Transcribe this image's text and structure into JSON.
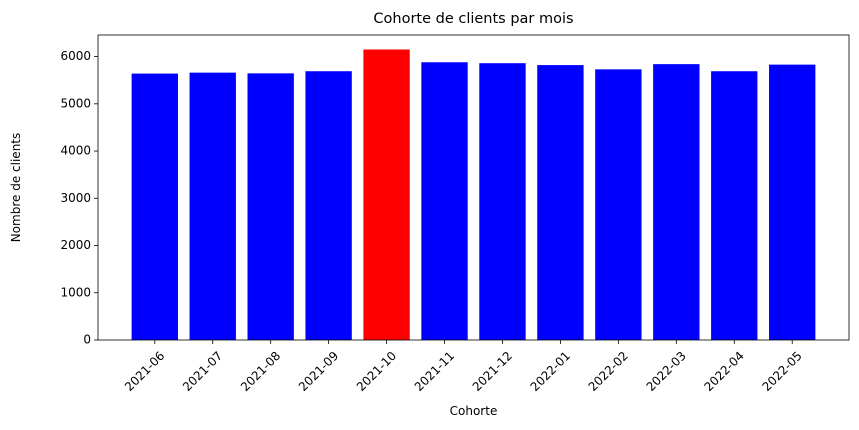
{
  "chart_data": {
    "type": "bar",
    "title": "Cohorte de clients par mois",
    "xlabel": "Cohorte",
    "ylabel": "Nombre de clients",
    "categories": [
      "2021-06",
      "2021-07",
      "2021-08",
      "2021-09",
      "2021-10",
      "2021-11",
      "2021-12",
      "2022-01",
      "2022-02",
      "2022-03",
      "2022-04",
      "2022-05"
    ],
    "values": [
      5640,
      5660,
      5645,
      5690,
      6150,
      5880,
      5860,
      5820,
      5730,
      5840,
      5690,
      5830
    ],
    "bar_colors": [
      "#0000ff",
      "#0000ff",
      "#0000ff",
      "#0000ff",
      "#ff0000",
      "#0000ff",
      "#0000ff",
      "#0000ff",
      "#0000ff",
      "#0000ff",
      "#0000ff",
      "#0000ff"
    ],
    "ylim": [
      0,
      6457
    ],
    "yticks": [
      0,
      1000,
      2000,
      3000,
      4000,
      5000,
      6000
    ],
    "ytick_labels": [
      "0",
      "1000",
      "2000",
      "3000",
      "4000",
      "5000",
      "6000"
    ],
    "grid": false,
    "x_tick_rotation": 45
  }
}
